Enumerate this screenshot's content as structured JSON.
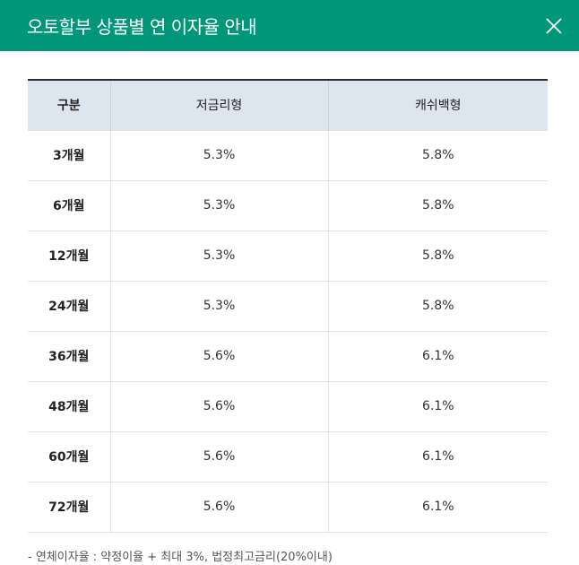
{
  "header": {
    "title": "오토할부 상품별 연 이자율 안내",
    "close_icon": "close-icon",
    "background_color": "#00967a"
  },
  "table": {
    "columns": [
      "구분",
      "저금리형",
      "캐쉬백형"
    ],
    "rows": [
      {
        "term": "3개월",
        "low_rate": "5.3%",
        "cashback": "5.8%"
      },
      {
        "term": "6개월",
        "low_rate": "5.3%",
        "cashback": "5.8%"
      },
      {
        "term": "12개월",
        "low_rate": "5.3%",
        "cashback": "5.8%"
      },
      {
        "term": "24개월",
        "low_rate": "5.3%",
        "cashback": "5.8%"
      },
      {
        "term": "36개월",
        "low_rate": "5.6%",
        "cashback": "6.1%"
      },
      {
        "term": "48개월",
        "low_rate": "5.6%",
        "cashback": "6.1%"
      },
      {
        "term": "60개월",
        "low_rate": "5.6%",
        "cashback": "6.1%"
      },
      {
        "term": "72개월",
        "low_rate": "5.6%",
        "cashback": "6.1%"
      }
    ]
  },
  "footnote": "-  연체이자율 : 약정이율 + 최대 3%, 법정최고금리(20%이내)"
}
